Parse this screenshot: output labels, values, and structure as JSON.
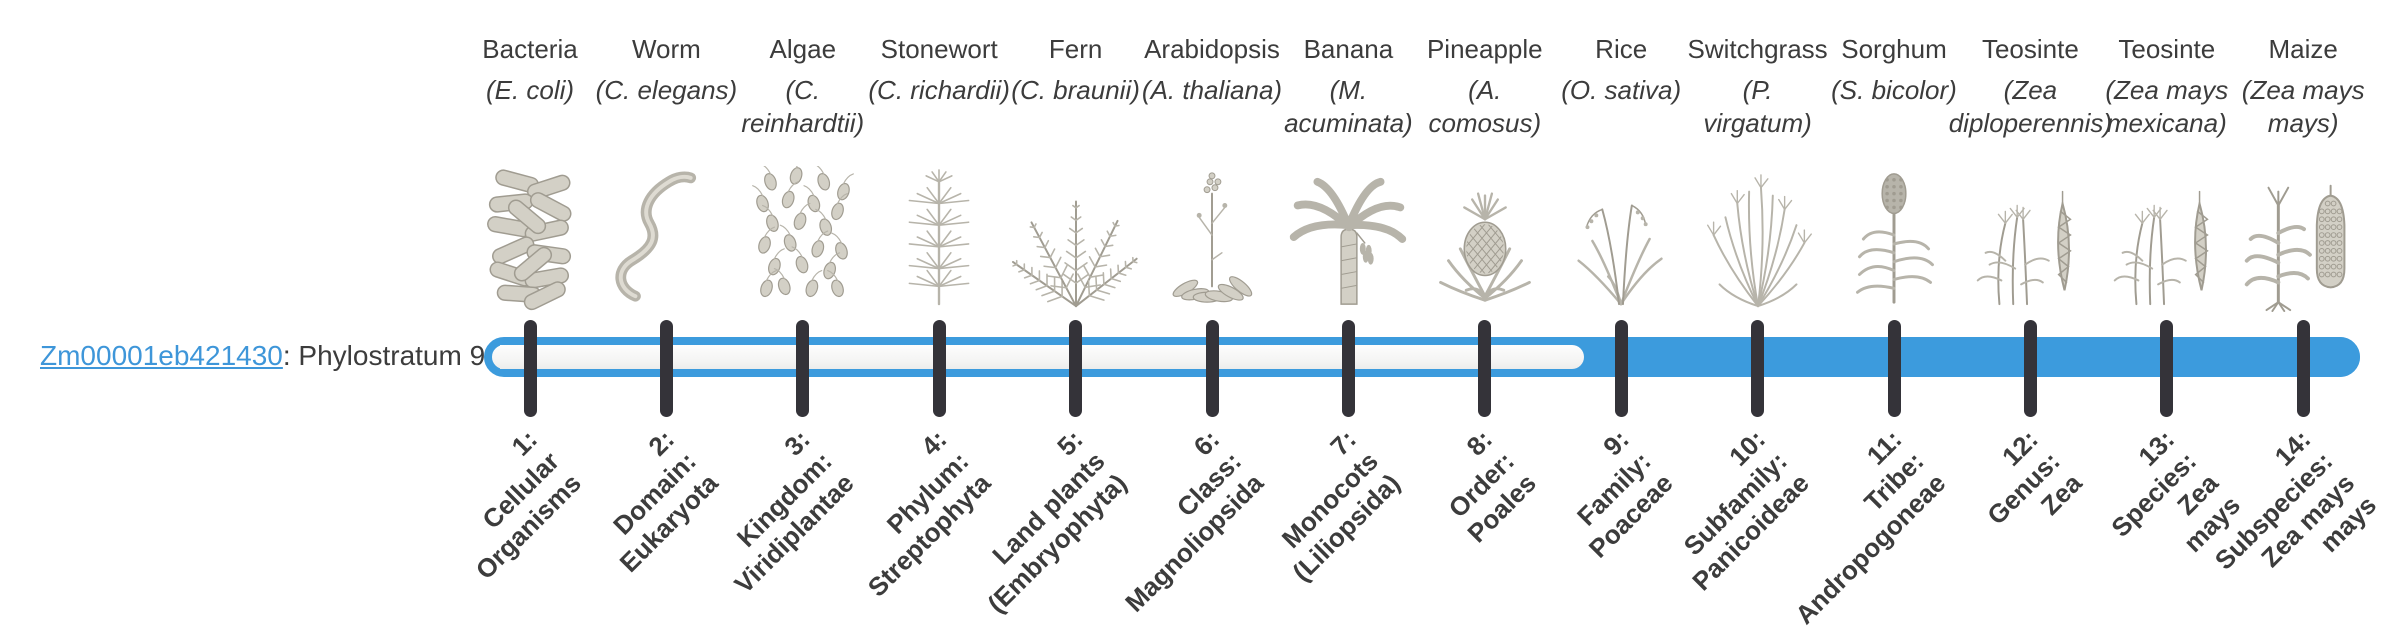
{
  "gene": {
    "id": "Zm00001eb421430",
    "suffix": ": Phylostratum 9",
    "phylostratum": 9
  },
  "colors": {
    "accent_blue": "#3c9bdd",
    "tick_dark": "#343339",
    "text": "#3c3c3c",
    "link_blue": "#3e96d9"
  },
  "strata": [
    {
      "index": 1,
      "organism": "Bacteria",
      "species": "(E. coli)",
      "icon": "bacteria-icon",
      "stratum_label": "1:\nCellular\nOrganisms"
    },
    {
      "index": 2,
      "organism": "Worm",
      "species": "(C. elegans)",
      "icon": "worm-icon",
      "stratum_label": "2:\nDomain:\nEukaryota"
    },
    {
      "index": 3,
      "organism": "Algae",
      "species": "(C.\nreinhardtii)",
      "icon": "algae-icon",
      "stratum_label": "3:\nKingdom:\nViridiplantae"
    },
    {
      "index": 4,
      "organism": "Stonewort",
      "species": "(C. richardii)",
      "icon": "stonewort-icon",
      "stratum_label": "4:\nPhylum:\nStreptophyta"
    },
    {
      "index": 5,
      "organism": "Fern",
      "species": "(C. braunii)",
      "icon": "fern-icon",
      "stratum_label": "5:\nLand plants\n(Embryophyta)"
    },
    {
      "index": 6,
      "organism": "Arabidopsis",
      "species": "(A. thaliana)",
      "icon": "arabidopsis-icon",
      "stratum_label": "6:\nClass:\nMagnoliopsida"
    },
    {
      "index": 7,
      "organism": "Banana",
      "species": "(M.\nacuminata)",
      "icon": "banana-icon",
      "stratum_label": "7:\nMonocots\n(Liliopsida)"
    },
    {
      "index": 8,
      "organism": "Pineapple",
      "species": "(A.\ncomosus)",
      "icon": "pineapple-icon",
      "stratum_label": "8:\nOrder:\nPoales"
    },
    {
      "index": 9,
      "organism": "Rice",
      "species": "(O. sativa)",
      "icon": "rice-icon",
      "stratum_label": "9:\nFamily:\nPoaceae"
    },
    {
      "index": 10,
      "organism": "Switchgrass",
      "species": "(P.\nvirgatum)",
      "icon": "switchgrass-icon",
      "stratum_label": "10:\nSubfamily:\nPanicoideae"
    },
    {
      "index": 11,
      "organism": "Sorghum",
      "species": "(S. bicolor)",
      "icon": "sorghum-icon",
      "stratum_label": "11:\nTribe:\nAndropogoneae"
    },
    {
      "index": 12,
      "organism": "Teosinte",
      "species": "(Zea\ndiploperennis)",
      "icon": "teosinte-icon",
      "stratum_label": "12:\nGenus:\nZea"
    },
    {
      "index": 13,
      "organism": "Teosinte",
      "species": "(Zea mays\nmexicana)",
      "icon": "teosinte-icon",
      "stratum_label": "13:\nSpecies:\nZea\nmays"
    },
    {
      "index": 14,
      "organism": "Maize",
      "species": "(Zea mays\nmays)",
      "icon": "maize-icon",
      "stratum_label": "14:\nSubspecies:\nZea mays\nmays"
    }
  ]
}
